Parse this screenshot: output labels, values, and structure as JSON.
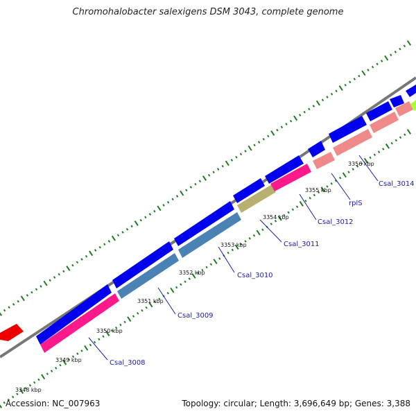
{
  "title": "Chromohalobacter salexigens DSM 3043, complete genome",
  "footer": {
    "accession": "Accession: NC_007963",
    "summary": "Topology: circular; Length: 3,696,649 bp; Genes: 3,388"
  },
  "colors": {
    "background": "#ffffff",
    "backbone": "#777777",
    "tick_marks": "#1e7a1e",
    "forward_cds": "#0000ee",
    "rev_pink": "#ff1a8c",
    "rev_steelblue": "#4a82b4",
    "rev_olive": "#b8b070",
    "rev_salmon": "#f08a8a",
    "red_feature": "#ee0000",
    "lime_feature": "#aaff33",
    "label": "#1a1aa8"
  },
  "kbp_ticks": [
    "3348 kbp",
    "3349 kbp",
    "3350 kbp",
    "3351 kbp",
    "3352 kbp",
    "3353 kbp",
    "3354 kbp",
    "3355 kbp",
    "3356 kbp"
  ],
  "gene_labels": [
    "Csal_3008",
    "Csal_3009",
    "Csal_3010",
    "Csal_3011",
    "Csal_3012",
    "rplS",
    "Csal_3014"
  ]
}
